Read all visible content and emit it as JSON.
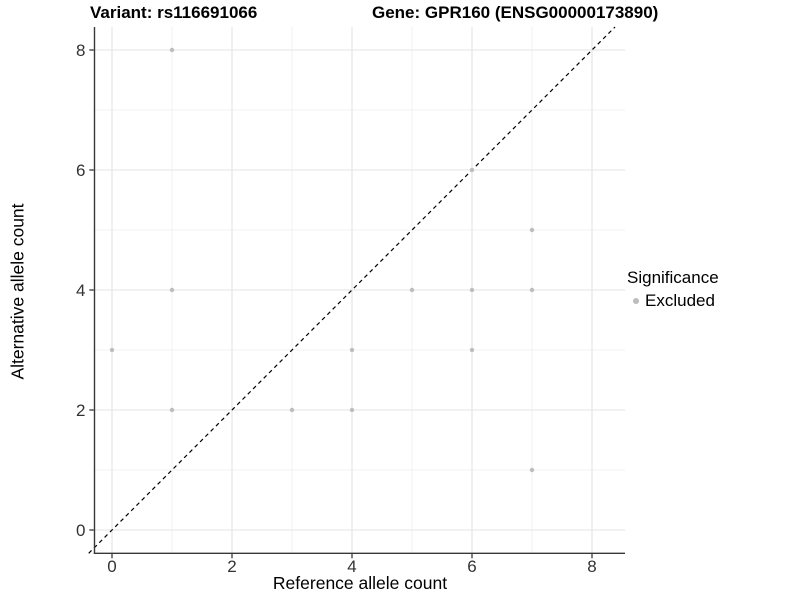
{
  "titles": {
    "variant": "Variant: rs116691066",
    "gene": "Gene: GPR160 (ENSG00000173890)"
  },
  "chart_data": {
    "type": "scatter",
    "xlabel": "Reference allele count",
    "ylabel": "Alternative allele count",
    "xlim": [
      -0.4,
      8.55
    ],
    "ylim": [
      -0.4,
      8.4
    ],
    "x_ticks": [
      0,
      2,
      4,
      6,
      8
    ],
    "y_ticks": [
      0,
      2,
      4,
      6,
      8
    ],
    "x_minor_ticks": [
      1,
      3,
      5,
      7
    ],
    "y_minor_ticks": [
      1,
      3,
      5,
      7
    ],
    "grid": "major-and-minor",
    "points": [
      [
        0,
        3
      ],
      [
        1,
        2
      ],
      [
        1,
        4
      ],
      [
        1,
        8
      ],
      [
        3,
        2
      ],
      [
        4,
        2
      ],
      [
        4,
        3
      ],
      [
        5,
        4
      ],
      [
        6,
        3
      ],
      [
        6,
        4
      ],
      [
        6,
        6
      ],
      [
        7,
        1
      ],
      [
        7,
        4
      ],
      [
        7,
        5
      ]
    ],
    "point_color": "#bdbdbd",
    "identity_line": {
      "type": "y-equals-x",
      "style": "dashed",
      "color": "#000000"
    },
    "legend_position": "right"
  },
  "legend": {
    "title": "Significance",
    "items": [
      {
        "label": "Excluded",
        "color": "#bdbdbd"
      }
    ]
  },
  "colors": {
    "background": "#ffffff",
    "grid_major": "#e3e3e3",
    "grid_minor": "#f0f0f0",
    "axis_line": "#383838",
    "tick_label": "#333333"
  }
}
